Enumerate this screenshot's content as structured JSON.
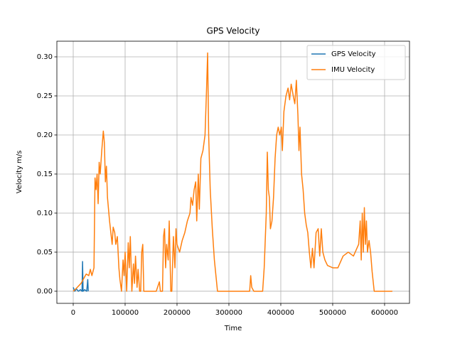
{
  "chart_data": {
    "type": "line",
    "title": "GPS Velocity",
    "xlabel": "Time",
    "ylabel": "Velocity m/s",
    "xlim": [
      -31500,
      648000
    ],
    "ylim": [
      -0.0155,
      0.32
    ],
    "xticks": [
      0,
      100000,
      200000,
      300000,
      400000,
      500000,
      600000
    ],
    "yticks": [
      {
        "value": 0,
        "label": "0.00"
      },
      {
        "value": 0.05,
        "label": "0.05"
      },
      {
        "value": 0.1,
        "label": "0.10"
      },
      {
        "value": 0.15,
        "label": "0.15"
      },
      {
        "value": 0.2,
        "label": "0.20"
      },
      {
        "value": 0.25,
        "label": "0.25"
      },
      {
        "value": 0.3,
        "label": "0.30"
      }
    ],
    "grid": true,
    "legend": "upper right",
    "series": [
      {
        "name": "GPS Velocity",
        "color": "#1f77b4",
        "x": [
          0,
          3000,
          6000,
          10000,
          14000,
          17000,
          18000,
          19000,
          22000,
          26000,
          28000,
          29000
        ],
        "values": [
          0.005,
          0.0,
          0.003,
          0.0,
          0.002,
          0.0,
          0.038,
          0.0,
          0.002,
          0.0,
          0.015,
          0.0
        ]
      },
      {
        "name": "IMU Velocity",
        "color": "#ff7f0e",
        "x": [
          0,
          5000,
          15000,
          25000,
          30000,
          33000,
          36000,
          40000,
          42000,
          44000,
          46000,
          48000,
          50000,
          52000,
          55000,
          58000,
          60000,
          62000,
          64000,
          66000,
          70000,
          75000,
          77000,
          80000,
          82000,
          85000,
          88000,
          90000,
          93000,
          96000,
          98000,
          100000,
          103000,
          106000,
          108000,
          110000,
          113000,
          116000,
          118000,
          120000,
          123000,
          125000,
          128000,
          130000,
          132000,
          134000,
          136000,
          140000,
          150000,
          160000,
          166000,
          168000,
          172000,
          174000,
          176000,
          178000,
          180000,
          183000,
          185000,
          188000,
          190000,
          193000,
          196000,
          198000,
          200000,
          205000,
          210000,
          215000,
          220000,
          225000,
          227000,
          230000,
          233000,
          236000,
          238000,
          241000,
          243000,
          246000,
          250000,
          254000,
          257000,
          259000,
          261000,
          264000,
          268000,
          272000,
          275000,
          278000,
          290000,
          320000,
          340000,
          342000,
          344000,
          348000,
          365000,
          368000,
          372000,
          374000,
          376000,
          378000,
          380000,
          383000,
          386000,
          389000,
          392000,
          395000,
          398000,
          401000,
          403000,
          406000,
          410000,
          414000,
          417000,
          420000,
          424000,
          427000,
          430000,
          433000,
          435000,
          437000,
          440000,
          443000,
          446000,
          449000,
          452000,
          455000,
          458000,
          461000,
          464000,
          468000,
          472000,
          475000,
          478000,
          481000,
          485000,
          490000,
          500000,
          510000,
          520000,
          530000,
          540000,
          550000,
          553000,
          555000,
          557000,
          559000,
          561000,
          563000,
          565000,
          567000,
          570000,
          573000,
          576000,
          580000,
          590000,
          600000,
          615000
        ],
        "values": [
          0.0,
          0.003,
          0.01,
          0.022,
          0.02,
          0.028,
          0.02,
          0.03,
          0.145,
          0.13,
          0.15,
          0.112,
          0.165,
          0.15,
          0.18,
          0.205,
          0.19,
          0.14,
          0.16,
          0.12,
          0.09,
          0.06,
          0.082,
          0.075,
          0.06,
          0.07,
          0.03,
          0.015,
          0.0,
          0.04,
          0.02,
          0.05,
          0.0,
          0.062,
          0.03,
          0.07,
          0.0,
          0.035,
          0.01,
          0.045,
          0.005,
          0.028,
          0.0,
          0.0,
          0.05,
          0.06,
          0.0,
          0.0,
          0.0,
          0.0,
          0.012,
          0.0,
          0.0,
          0.07,
          0.08,
          0.03,
          0.06,
          0.04,
          0.09,
          0.0,
          0.0,
          0.07,
          0.03,
          0.08,
          0.06,
          0.05,
          0.065,
          0.075,
          0.09,
          0.1,
          0.12,
          0.11,
          0.13,
          0.14,
          0.09,
          0.15,
          0.105,
          0.17,
          0.18,
          0.2,
          0.26,
          0.305,
          0.2,
          0.13,
          0.08,
          0.04,
          0.02,
          0.0,
          0.0,
          0.0,
          0.0,
          0.02,
          0.005,
          0.0,
          0.0,
          0.03,
          0.1,
          0.178,
          0.13,
          0.12,
          0.08,
          0.09,
          0.12,
          0.17,
          0.2,
          0.21,
          0.2,
          0.21,
          0.18,
          0.23,
          0.25,
          0.26,
          0.245,
          0.265,
          0.25,
          0.24,
          0.27,
          0.225,
          0.18,
          0.21,
          0.15,
          0.13,
          0.1,
          0.085,
          0.075,
          0.05,
          0.03,
          0.055,
          0.03,
          0.075,
          0.08,
          0.045,
          0.08,
          0.05,
          0.04,
          0.033,
          0.03,
          0.03,
          0.045,
          0.05,
          0.045,
          0.06,
          0.09,
          0.04,
          0.1,
          0.05,
          0.107,
          0.06,
          0.09,
          0.05,
          0.065,
          0.05,
          0.025,
          0.0,
          0.0,
          0.0,
          0.0
        ]
      }
    ]
  }
}
